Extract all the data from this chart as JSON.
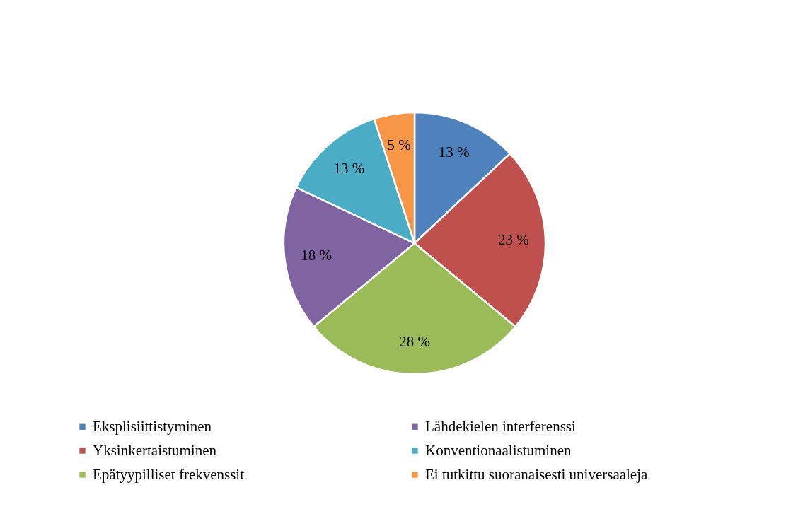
{
  "chart_data": {
    "type": "pie",
    "categories": [
      "Eksplisiittistyminen",
      "Yksinkertaistuminen",
      "Epätyypilliset frekvenssit",
      "Lähdekielen interferenssi",
      "Konventionaalistuminen",
      "Ei tutkittu suoranaisesti universaaleja"
    ],
    "values": [
      13,
      23,
      28,
      18,
      13,
      5
    ],
    "colors": [
      "#4f81bd",
      "#c0504d",
      "#9bbb59",
      "#8064a2",
      "#4bacc6",
      "#f79646"
    ],
    "value_labels": [
      "13 %",
      "23 %",
      "28 %",
      "18 %",
      "13 %",
      "5 %"
    ],
    "legend": "bottom"
  }
}
